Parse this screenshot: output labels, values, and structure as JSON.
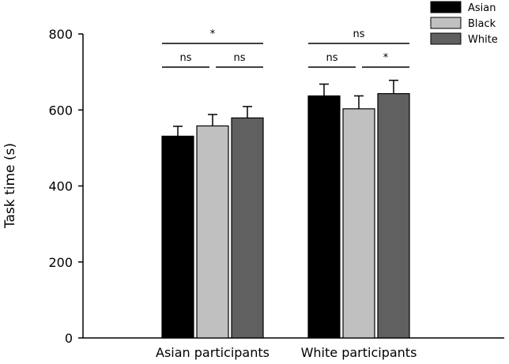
{
  "chart_data": {
    "type": "bar",
    "ylabel": "Task time (s)",
    "xlabel": "",
    "ylim": [
      0,
      800
    ],
    "yticks": [
      0,
      200,
      400,
      600,
      800
    ],
    "grid": false,
    "legend_position": "top-right",
    "categories": [
      "Asian participants",
      "White participants"
    ],
    "series": [
      {
        "name": "Asian",
        "color": "#000000",
        "values": [
          531,
          637
        ],
        "errors": [
          26,
          31
        ]
      },
      {
        "name": "Black",
        "color": "#c0c0c0",
        "values": [
          558,
          603
        ],
        "errors": [
          30,
          34
        ]
      },
      {
        "name": "White",
        "color": "#606060",
        "values": [
          579,
          643
        ],
        "errors": [
          30,
          35
        ]
      }
    ],
    "annotations": [
      {
        "group": 0,
        "from": 0,
        "to": 2,
        "level": 1,
        "label": "*"
      },
      {
        "group": 0,
        "from": 0,
        "to": 1,
        "level": 0,
        "label": "ns"
      },
      {
        "group": 0,
        "from": 1,
        "to": 2,
        "level": 0,
        "label": "ns"
      },
      {
        "group": 1,
        "from": 0,
        "to": 2,
        "level": 1,
        "label": "ns"
      },
      {
        "group": 1,
        "from": 0,
        "to": 1,
        "level": 0,
        "label": "ns"
      },
      {
        "group": 1,
        "from": 1,
        "to": 2,
        "level": 0,
        "label": "*"
      }
    ]
  }
}
